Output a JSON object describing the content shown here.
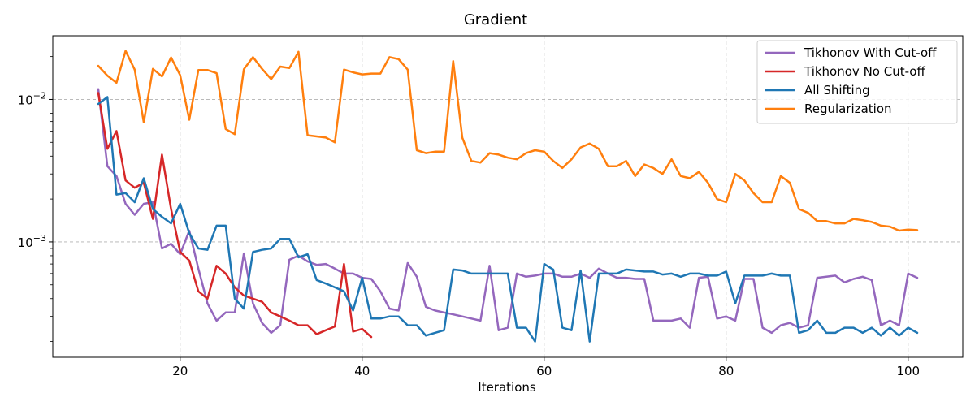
{
  "chart_data": {
    "type": "line",
    "title": "Gradient",
    "xlabel": "Iterations",
    "ylabel": "",
    "yscale": "log",
    "xlim": [
      6,
      106
    ],
    "ylim": [
      0.000155,
      0.028
    ],
    "xticks": [
      20,
      40,
      60,
      80,
      100
    ],
    "xtick_labels": [
      "20",
      "40",
      "60",
      "80",
      "100"
    ],
    "yticks": [
      0.001,
      0.01
    ],
    "grid": true,
    "legend_position": "top-right",
    "series": [
      {
        "name": "Tikhonov With Cut-off",
        "color": "#9467bd",
        "x": [
          11,
          12,
          13,
          14,
          15,
          16,
          17,
          18,
          19,
          20,
          21,
          22,
          23,
          24,
          25,
          26,
          27,
          28,
          29,
          30,
          31,
          32,
          33,
          34,
          35,
          36,
          37,
          38,
          39,
          40,
          41,
          42,
          43,
          44,
          45,
          46,
          47,
          48,
          49,
          50,
          51,
          52,
          53,
          54,
          55,
          56,
          57,
          58,
          59,
          60,
          61,
          62,
          63,
          64,
          65,
          66,
          67,
          68,
          69,
          70,
          71,
          72,
          73,
          74,
          75,
          76,
          77,
          78,
          79,
          80,
          81,
          82,
          83,
          84,
          85,
          86,
          87,
          88,
          89,
          90,
          91,
          92,
          93,
          94,
          95,
          96,
          97,
          98,
          99,
          100,
          101
        ],
        "y": [
          0.0118,
          0.0034,
          0.0029,
          0.00185,
          0.00155,
          0.00185,
          0.0019,
          0.0009,
          0.00097,
          0.00082,
          0.0012,
          0.00065,
          0.00037,
          0.00028,
          0.00032,
          0.00032,
          0.00083,
          0.00037,
          0.00027,
          0.00023,
          0.00026,
          0.00075,
          0.0008,
          0.00073,
          0.00069,
          0.0007,
          0.00065,
          0.0006,
          0.0006,
          0.00056,
          0.00055,
          0.00045,
          0.00034,
          0.00033,
          0.00071,
          0.00057,
          0.00035,
          0.00033,
          0.00032,
          0.00031,
          0.0003,
          0.00029,
          0.00028,
          0.00068,
          0.00024,
          0.00025,
          0.0006,
          0.00057,
          0.00058,
          0.0006,
          0.0006,
          0.00057,
          0.00057,
          0.0006,
          0.00056,
          0.00065,
          0.0006,
          0.00056,
          0.00056,
          0.00055,
          0.00055,
          0.00028,
          0.00028,
          0.00028,
          0.00029,
          0.00025,
          0.00056,
          0.00057,
          0.00029,
          0.0003,
          0.00028,
          0.00055,
          0.00055,
          0.00025,
          0.00023,
          0.00026,
          0.00027,
          0.00025,
          0.00026,
          0.00056,
          0.00057,
          0.00058,
          0.00052,
          0.00055,
          0.00057,
          0.00054,
          0.00026,
          0.00028,
          0.00026,
          0.0006,
          0.00056
        ]
      },
      {
        "name": "Tikhonov No Cut-off",
        "color": "#d62728",
        "x": [
          11,
          12,
          13,
          14,
          15,
          16,
          17,
          18,
          19,
          20,
          21,
          22,
          23,
          24,
          25,
          26,
          27,
          28,
          29,
          30,
          31,
          32,
          33,
          34,
          35,
          36,
          37,
          38,
          39,
          40,
          41
        ],
        "y": [
          0.0111,
          0.0045,
          0.006,
          0.0027,
          0.0024,
          0.0026,
          0.00145,
          0.0041,
          0.0017,
          0.00085,
          0.00074,
          0.00045,
          0.0004,
          0.00068,
          0.0006,
          0.00048,
          0.00042,
          0.0004,
          0.00038,
          0.00032,
          0.0003,
          0.00028,
          0.00026,
          0.00026,
          0.000225,
          0.00024,
          0.000255,
          0.0007,
          0.000235,
          0.000245,
          0.000215
        ]
      },
      {
        "name": "All Shifting",
        "color": "#1f77b4",
        "x": [
          11,
          12,
          13,
          14,
          15,
          16,
          17,
          18,
          19,
          20,
          21,
          22,
          23,
          24,
          25,
          26,
          27,
          28,
          29,
          30,
          31,
          32,
          33,
          34,
          35,
          36,
          37,
          38,
          39,
          40,
          41,
          42,
          43,
          44,
          45,
          46,
          47,
          48,
          49,
          50,
          51,
          52,
          53,
          54,
          55,
          56,
          57,
          58,
          59,
          60,
          61,
          62,
          63,
          64,
          65,
          66,
          67,
          68,
          69,
          70,
          71,
          72,
          73,
          74,
          75,
          76,
          77,
          78,
          79,
          80,
          81,
          82,
          83,
          84,
          85,
          86,
          87,
          88,
          89,
          90,
          91,
          92,
          93,
          94,
          95,
          96,
          97,
          98,
          99,
          100,
          101
        ],
        "y": [
          0.0093,
          0.0104,
          0.00215,
          0.0022,
          0.0019,
          0.0028,
          0.0017,
          0.0015,
          0.00135,
          0.00185,
          0.00115,
          0.0009,
          0.00088,
          0.0013,
          0.0013,
          0.0004,
          0.00034,
          0.00085,
          0.00088,
          0.0009,
          0.00105,
          0.00105,
          0.00078,
          0.00082,
          0.00054,
          0.00051,
          0.00048,
          0.00045,
          0.00033,
          0.00056,
          0.00029,
          0.00029,
          0.0003,
          0.0003,
          0.00026,
          0.00026,
          0.00022,
          0.00023,
          0.00024,
          0.00064,
          0.00063,
          0.0006,
          0.0006,
          0.0006,
          0.0006,
          0.0006,
          0.00025,
          0.00025,
          0.0002,
          0.0007,
          0.00064,
          0.00025,
          0.00024,
          0.00063,
          0.0002,
          0.0006,
          0.0006,
          0.0006,
          0.00064,
          0.00063,
          0.00062,
          0.00062,
          0.00059,
          0.0006,
          0.00057,
          0.0006,
          0.0006,
          0.00058,
          0.00058,
          0.00062,
          0.00037,
          0.00058,
          0.00058,
          0.00058,
          0.0006,
          0.00058,
          0.00058,
          0.00023,
          0.00024,
          0.00028,
          0.00023,
          0.00023,
          0.00025,
          0.00025,
          0.00023,
          0.00025,
          0.00022,
          0.00025,
          0.00022,
          0.00025,
          0.00023
        ]
      },
      {
        "name": "Regularization",
        "color": "#ff7f0e",
        "x": [
          11,
          12,
          13,
          14,
          15,
          16,
          17,
          18,
          19,
          20,
          21,
          22,
          23,
          24,
          25,
          26,
          27,
          28,
          29,
          30,
          31,
          32,
          33,
          34,
          35,
          36,
          37,
          38,
          39,
          40,
          41,
          42,
          43,
          44,
          45,
          46,
          47,
          48,
          49,
          50,
          51,
          52,
          53,
          54,
          55,
          56,
          57,
          58,
          59,
          60,
          61,
          62,
          63,
          64,
          65,
          66,
          67,
          68,
          69,
          70,
          71,
          72,
          73,
          74,
          75,
          76,
          77,
          78,
          79,
          80,
          81,
          82,
          83,
          84,
          85,
          86,
          87,
          88,
          89,
          90,
          91,
          92,
          93,
          94,
          95,
          96,
          97,
          98,
          99,
          100,
          101
        ],
        "y": [
          0.0172,
          0.0147,
          0.0131,
          0.0219,
          0.0162,
          0.0069,
          0.0164,
          0.0145,
          0.0197,
          0.0148,
          0.0072,
          0.0161,
          0.0161,
          0.0153,
          0.0062,
          0.0057,
          0.0163,
          0.0198,
          0.0164,
          0.0139,
          0.017,
          0.0166,
          0.0216,
          0.0056,
          0.0055,
          0.0054,
          0.005,
          0.0162,
          0.0155,
          0.015,
          0.0152,
          0.0152,
          0.0198,
          0.0192,
          0.0162,
          0.0044,
          0.0042,
          0.0043,
          0.0043,
          0.0186,
          0.0054,
          0.0037,
          0.0036,
          0.0042,
          0.0041,
          0.0039,
          0.0038,
          0.0042,
          0.0044,
          0.0043,
          0.0037,
          0.0033,
          0.0038,
          0.0046,
          0.0049,
          0.0045,
          0.0034,
          0.0034,
          0.0037,
          0.0029,
          0.0035,
          0.0033,
          0.003,
          0.0038,
          0.0029,
          0.0028,
          0.0031,
          0.0026,
          0.002,
          0.0019,
          0.003,
          0.0027,
          0.0022,
          0.0019,
          0.0019,
          0.0029,
          0.0026,
          0.0017,
          0.0016,
          0.0014,
          0.0014,
          0.00135,
          0.00135,
          0.00145,
          0.00142,
          0.00138,
          0.0013,
          0.00128,
          0.0012,
          0.00122,
          0.00121
        ]
      }
    ]
  }
}
